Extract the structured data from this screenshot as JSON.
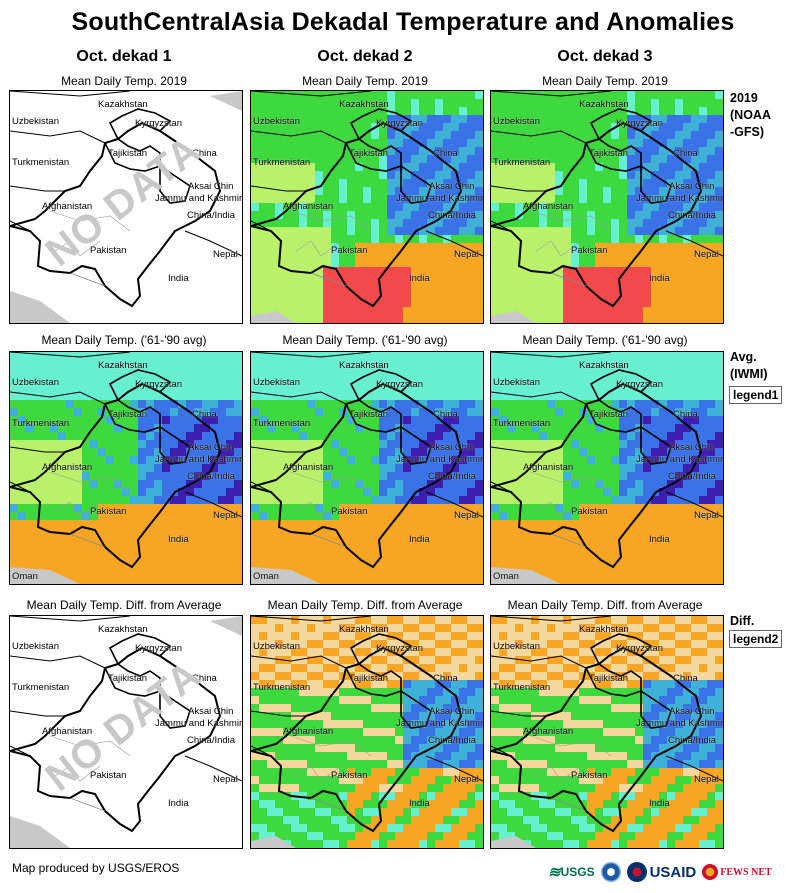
{
  "title": "SouthCentralAsia Dekadal Temperature and Anomalies",
  "columns": [
    "Oct. dekad 1",
    "Oct. dekad 2",
    "Oct. dekad 3"
  ],
  "rows": [
    {
      "subtitle": "Mean Daily Temp. 2019",
      "label_lines": [
        "2019",
        "(NOAA",
        "-GFS)"
      ],
      "legend": ""
    },
    {
      "subtitle": "Mean Daily Temp. ('61-'90 avg)",
      "label_lines": [
        "Avg.",
        "(IWMI)"
      ],
      "legend": "legend1"
    },
    {
      "subtitle": "Mean Daily Temp. Diff. from Average",
      "label_lines": [
        "Diff."
      ],
      "legend": "legend2"
    }
  ],
  "map_labels": {
    "kazakhstan": "Kazakhstan",
    "uzbekistan": "Uzbekistan",
    "kyrgyzstan": "Kyrgyzstan",
    "turkmenistan": "Turkmenistan",
    "tajikistan": "Tajikistan",
    "china": "China",
    "aksai_chin": "Aksai Chin",
    "jammu": "Jammu and Kashmir",
    "china_india": "China/India",
    "afghanistan": "Afghanistan",
    "pakistan": "Pakistan",
    "nepal": "Nepal",
    "india": "India",
    "oman": "Oman"
  },
  "no_data_text": "NO DATA",
  "footer": "Map produced by USGS/EROS",
  "logos": {
    "usgs": "USGS",
    "usaid": "USAID",
    "fewsnet": "FEWS NET"
  },
  "colors": {
    "red": "#f24a4a",
    "orange": "#f6a623",
    "tan": "#f4d79a",
    "yellowgreen": "#b9f26a",
    "green": "#3ed93e",
    "cyan": "#66f0d0",
    "teal": "#3fb0d8",
    "blue": "#3a72e8",
    "navy": "#3d1fb0"
  }
}
